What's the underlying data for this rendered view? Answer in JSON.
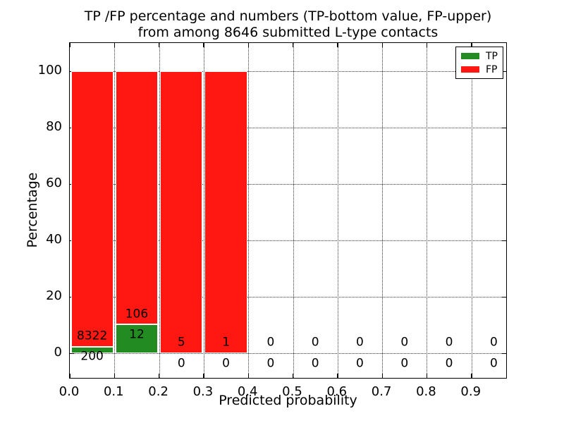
{
  "title": {
    "line1": "TP /FP percentage and numbers (TP-bottom value, FP-upper)",
    "line2": "from among 8646 submitted L-type contacts"
  },
  "x_axis": {
    "label": "Predicted probability",
    "tick_labels": [
      "0.0",
      "0.1",
      "0.2",
      "0.3",
      "0.4",
      "0.5",
      "0.6",
      "0.7",
      "0.8",
      "0.9"
    ],
    "tick_values": [
      0.0,
      0.1,
      0.2,
      0.3,
      0.4,
      0.5,
      0.6,
      0.7,
      0.8,
      0.9
    ],
    "max": 0.981
  },
  "y_axis": {
    "label": "Percentage",
    "tick_labels": [
      "0",
      "20",
      "40",
      "60",
      "80",
      "100"
    ],
    "tick_values": [
      0,
      20,
      40,
      60,
      80,
      100
    ],
    "lim": [
      -9.25,
      110
    ]
  },
  "legend": {
    "items": [
      {
        "label": "TP",
        "color": "#228b22"
      },
      {
        "label": "FP",
        "color": "#ff1712"
      }
    ],
    "position": "upper right"
  },
  "colors": {
    "tp": "#228b22",
    "fp": "#ff1712",
    "grid": "#333333",
    "axis": "#000000",
    "background": "#ffffff"
  },
  "chart_data": {
    "type": "bar",
    "stacked": true,
    "grid": "dotted",
    "title": "TP /FP percentage and numbers (TP-bottom value, FP-upper) from among 8646 submitted L-type contacts",
    "xlabel": "Predicted probability",
    "ylabel": "Percentage",
    "total_contacts": 8646,
    "bin_width": 0.1,
    "series_note": "per bin: lower number = TP count, upper number = FP count; bar = percentage split, stacks to 100%",
    "bins": [
      {
        "x0": 0.0,
        "x1": 0.1,
        "tp_count": 200,
        "fp_count": 8322,
        "tp_pct": 2.35,
        "fp_pct": 97.65
      },
      {
        "x0": 0.1,
        "x1": 0.2,
        "tp_count": 12,
        "fp_count": 106,
        "tp_pct": 10.17,
        "fp_pct": 89.83
      },
      {
        "x0": 0.2,
        "x1": 0.3,
        "tp_count": 0,
        "fp_count": 5,
        "tp_pct": 0,
        "fp_pct": 100
      },
      {
        "x0": 0.3,
        "x1": 0.4,
        "tp_count": 0,
        "fp_count": 1,
        "tp_pct": 0,
        "fp_pct": 100
      },
      {
        "x0": 0.4,
        "x1": 0.5,
        "tp_count": 0,
        "fp_count": 0,
        "tp_pct": 0,
        "fp_pct": 0
      },
      {
        "x0": 0.5,
        "x1": 0.6,
        "tp_count": 0,
        "fp_count": 0,
        "tp_pct": 0,
        "fp_pct": 0
      },
      {
        "x0": 0.6,
        "x1": 0.7,
        "tp_count": 0,
        "fp_count": 0,
        "tp_pct": 0,
        "fp_pct": 0
      },
      {
        "x0": 0.7,
        "x1": 0.8,
        "tp_count": 0,
        "fp_count": 0,
        "tp_pct": 0,
        "fp_pct": 0
      },
      {
        "x0": 0.8,
        "x1": 0.9,
        "tp_count": 0,
        "fp_count": 0,
        "tp_pct": 0,
        "fp_pct": 0
      },
      {
        "x0": 0.9,
        "x1": 1.0,
        "tp_count": 0,
        "fp_count": 0,
        "tp_pct": 0,
        "fp_pct": 0
      }
    ]
  }
}
